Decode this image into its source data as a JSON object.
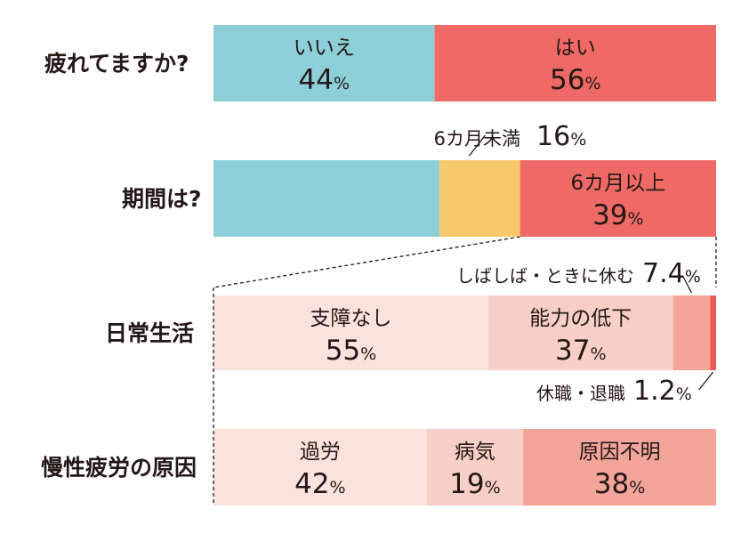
{
  "chart_data": {
    "type": "bar",
    "orientation": "horizontal",
    "stacked": true,
    "unit": "%",
    "colors": {
      "teal": "#8ccfd9",
      "yellow": "#f8c96c",
      "red": "#ef6a66",
      "pink_light": "#fbe2dc",
      "pink_mid": "#f8cfc6",
      "pink_dark": "#f4a59a",
      "red_dark": "#e85b56",
      "line": "#231815"
    },
    "rows": [
      {
        "label": "疲れてますか?",
        "segments": [
          {
            "name": "いいえ",
            "value": 44,
            "pct": "44",
            "color": "teal",
            "label": "inside"
          },
          {
            "name": "はい",
            "value": 56,
            "pct": "56",
            "color": "red",
            "label": "inside"
          }
        ]
      },
      {
        "label": "期間は?",
        "segments": [
          {
            "name": "",
            "value": 45,
            "pct": "",
            "color": "teal",
            "label": "none"
          },
          {
            "name": "6カ月未満",
            "value": 16,
            "pct": "16",
            "color": "yellow",
            "label": "callout-above"
          },
          {
            "name": "6カ月以上",
            "value": 39,
            "pct": "39",
            "color": "red",
            "label": "inside"
          }
        ]
      },
      {
        "label": "日常生活",
        "segments": [
          {
            "name": "支障なし",
            "value": 55,
            "pct": "55",
            "color": "pink_light",
            "label": "inside"
          },
          {
            "name": "能力の低下",
            "value": 37,
            "pct": "37",
            "color": "pink_mid",
            "label": "inside"
          },
          {
            "name": "しばしば・ときに休む",
            "value": 7.4,
            "pct": "7.4",
            "color": "pink_dark",
            "label": "callout-above"
          },
          {
            "name": "休職・退職",
            "value": 1.2,
            "pct": "1.2",
            "color": "red_dark",
            "label": "callout-below"
          }
        ]
      },
      {
        "label": "慢性疲労の原因",
        "segments": [
          {
            "name": "過労",
            "value": 42,
            "pct": "42",
            "color": "pink_light",
            "label": "inside"
          },
          {
            "name": "病気",
            "value": 19,
            "pct": "19",
            "color": "pink_mid",
            "label": "inside"
          },
          {
            "name": "原因不明",
            "value": 38,
            "pct": "38",
            "color": "pink_dark",
            "label": "inside"
          }
        ]
      }
    ],
    "breakdown": {
      "from_row": 1,
      "segment": 2,
      "to_rows": [
        2,
        3
      ],
      "style": "dashed"
    }
  }
}
